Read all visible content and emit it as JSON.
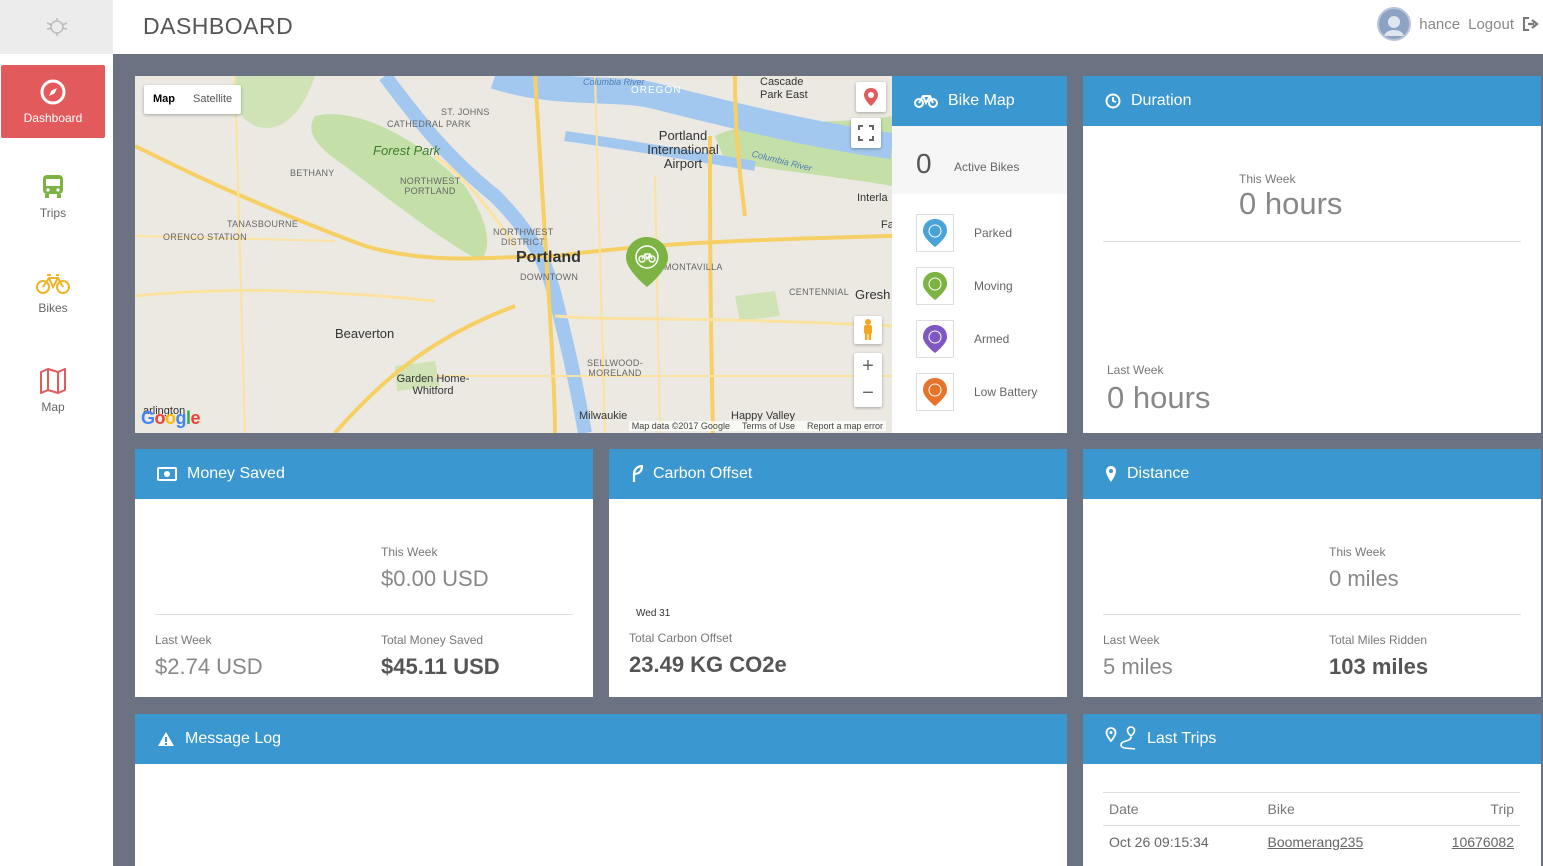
{
  "header": {
    "title": "DASHBOARD",
    "user": "hance",
    "logout": "Logout"
  },
  "sidebar": {
    "items": [
      {
        "label": "Dashboard",
        "icon": "compass-icon",
        "active": true
      },
      {
        "label": "Trips",
        "icon": "bus-icon"
      },
      {
        "label": "Bikes",
        "icon": "bike-icon"
      },
      {
        "label": "Map",
        "icon": "map-icon"
      }
    ]
  },
  "map": {
    "type_map": "Map",
    "type_satellite": "Satellite",
    "footer": {
      "data": "Map data ©2017 Google",
      "terms": "Terms of Use",
      "report": "Report a map error"
    },
    "google": "Google",
    "labels": {
      "portland": "Portland",
      "beaverton": "Beaverton",
      "forest_park": "Forest Park",
      "airport": "Portland International Airport",
      "downtown": "DOWNTOWN",
      "garden": "Garden Home-Whitford",
      "milwaukie": "Milwaukie",
      "happy_valley": "Happy Valley",
      "gresh": "Gresh",
      "montavilla": "MONTAVILLA",
      "centennial": "CENTENNIAL",
      "nw_portland": "NORTHWEST PORTLAND",
      "nw_district": "NORTHWEST DISTRICT",
      "st_johns": "ST. JOHNS",
      "cathedral": "CATHEDRAL PARK",
      "bethany": "BETHANY",
      "tanasbourne": "TANASBOURNE",
      "orenco": "ORENCO STATION",
      "sellwood": "SELLWOOD-MORELAND",
      "cascade": "Cascade Park East",
      "oregon": "OREGON",
      "columbia": "Columbia River",
      "interla": "Interla",
      "fa": "Fa",
      "arlington": "arlington"
    }
  },
  "bike_map": {
    "title": "Bike Map",
    "active_count": "0",
    "active_label": "Active Bikes",
    "legend": [
      {
        "label": "Parked",
        "color": "#4aa3d8"
      },
      {
        "label": "Moving",
        "color": "#7cb342"
      },
      {
        "label": "Armed",
        "color": "#7e57c2"
      },
      {
        "label": "Low Battery",
        "color": "#e8742c"
      }
    ]
  },
  "duration": {
    "title": "Duration",
    "this_week_label": "This Week",
    "this_week_value": "0 hours",
    "last_week_label": "Last Week",
    "last_week_value": "0 hours"
  },
  "money": {
    "title": "Money Saved",
    "this_week_label": "This Week",
    "this_week_value": "$0.00 USD",
    "last_week_label": "Last Week",
    "last_week_value": "$2.74 USD",
    "total_label": "Total Money Saved",
    "total_value": "$45.11 USD"
  },
  "carbon": {
    "title": "Carbon Offset",
    "date": "Wed 31",
    "total_label": "Total Carbon Offset",
    "total_value": "23.49 KG CO2e"
  },
  "distance": {
    "title": "Distance",
    "this_week_label": "This Week",
    "this_week_value": "0 miles",
    "last_week_label": "Last Week",
    "last_week_value": "5 miles",
    "total_label": "Total Miles Ridden",
    "total_value": "103 miles"
  },
  "message_log": {
    "title": "Message Log"
  },
  "last_trips": {
    "title": "Last Trips",
    "headers": {
      "date": "Date",
      "bike": "Bike",
      "trip": "Trip"
    },
    "rows": [
      {
        "date": "Oct 26 09:15:34",
        "bike": "Boomerang235",
        "trip": "10676082"
      }
    ]
  }
}
